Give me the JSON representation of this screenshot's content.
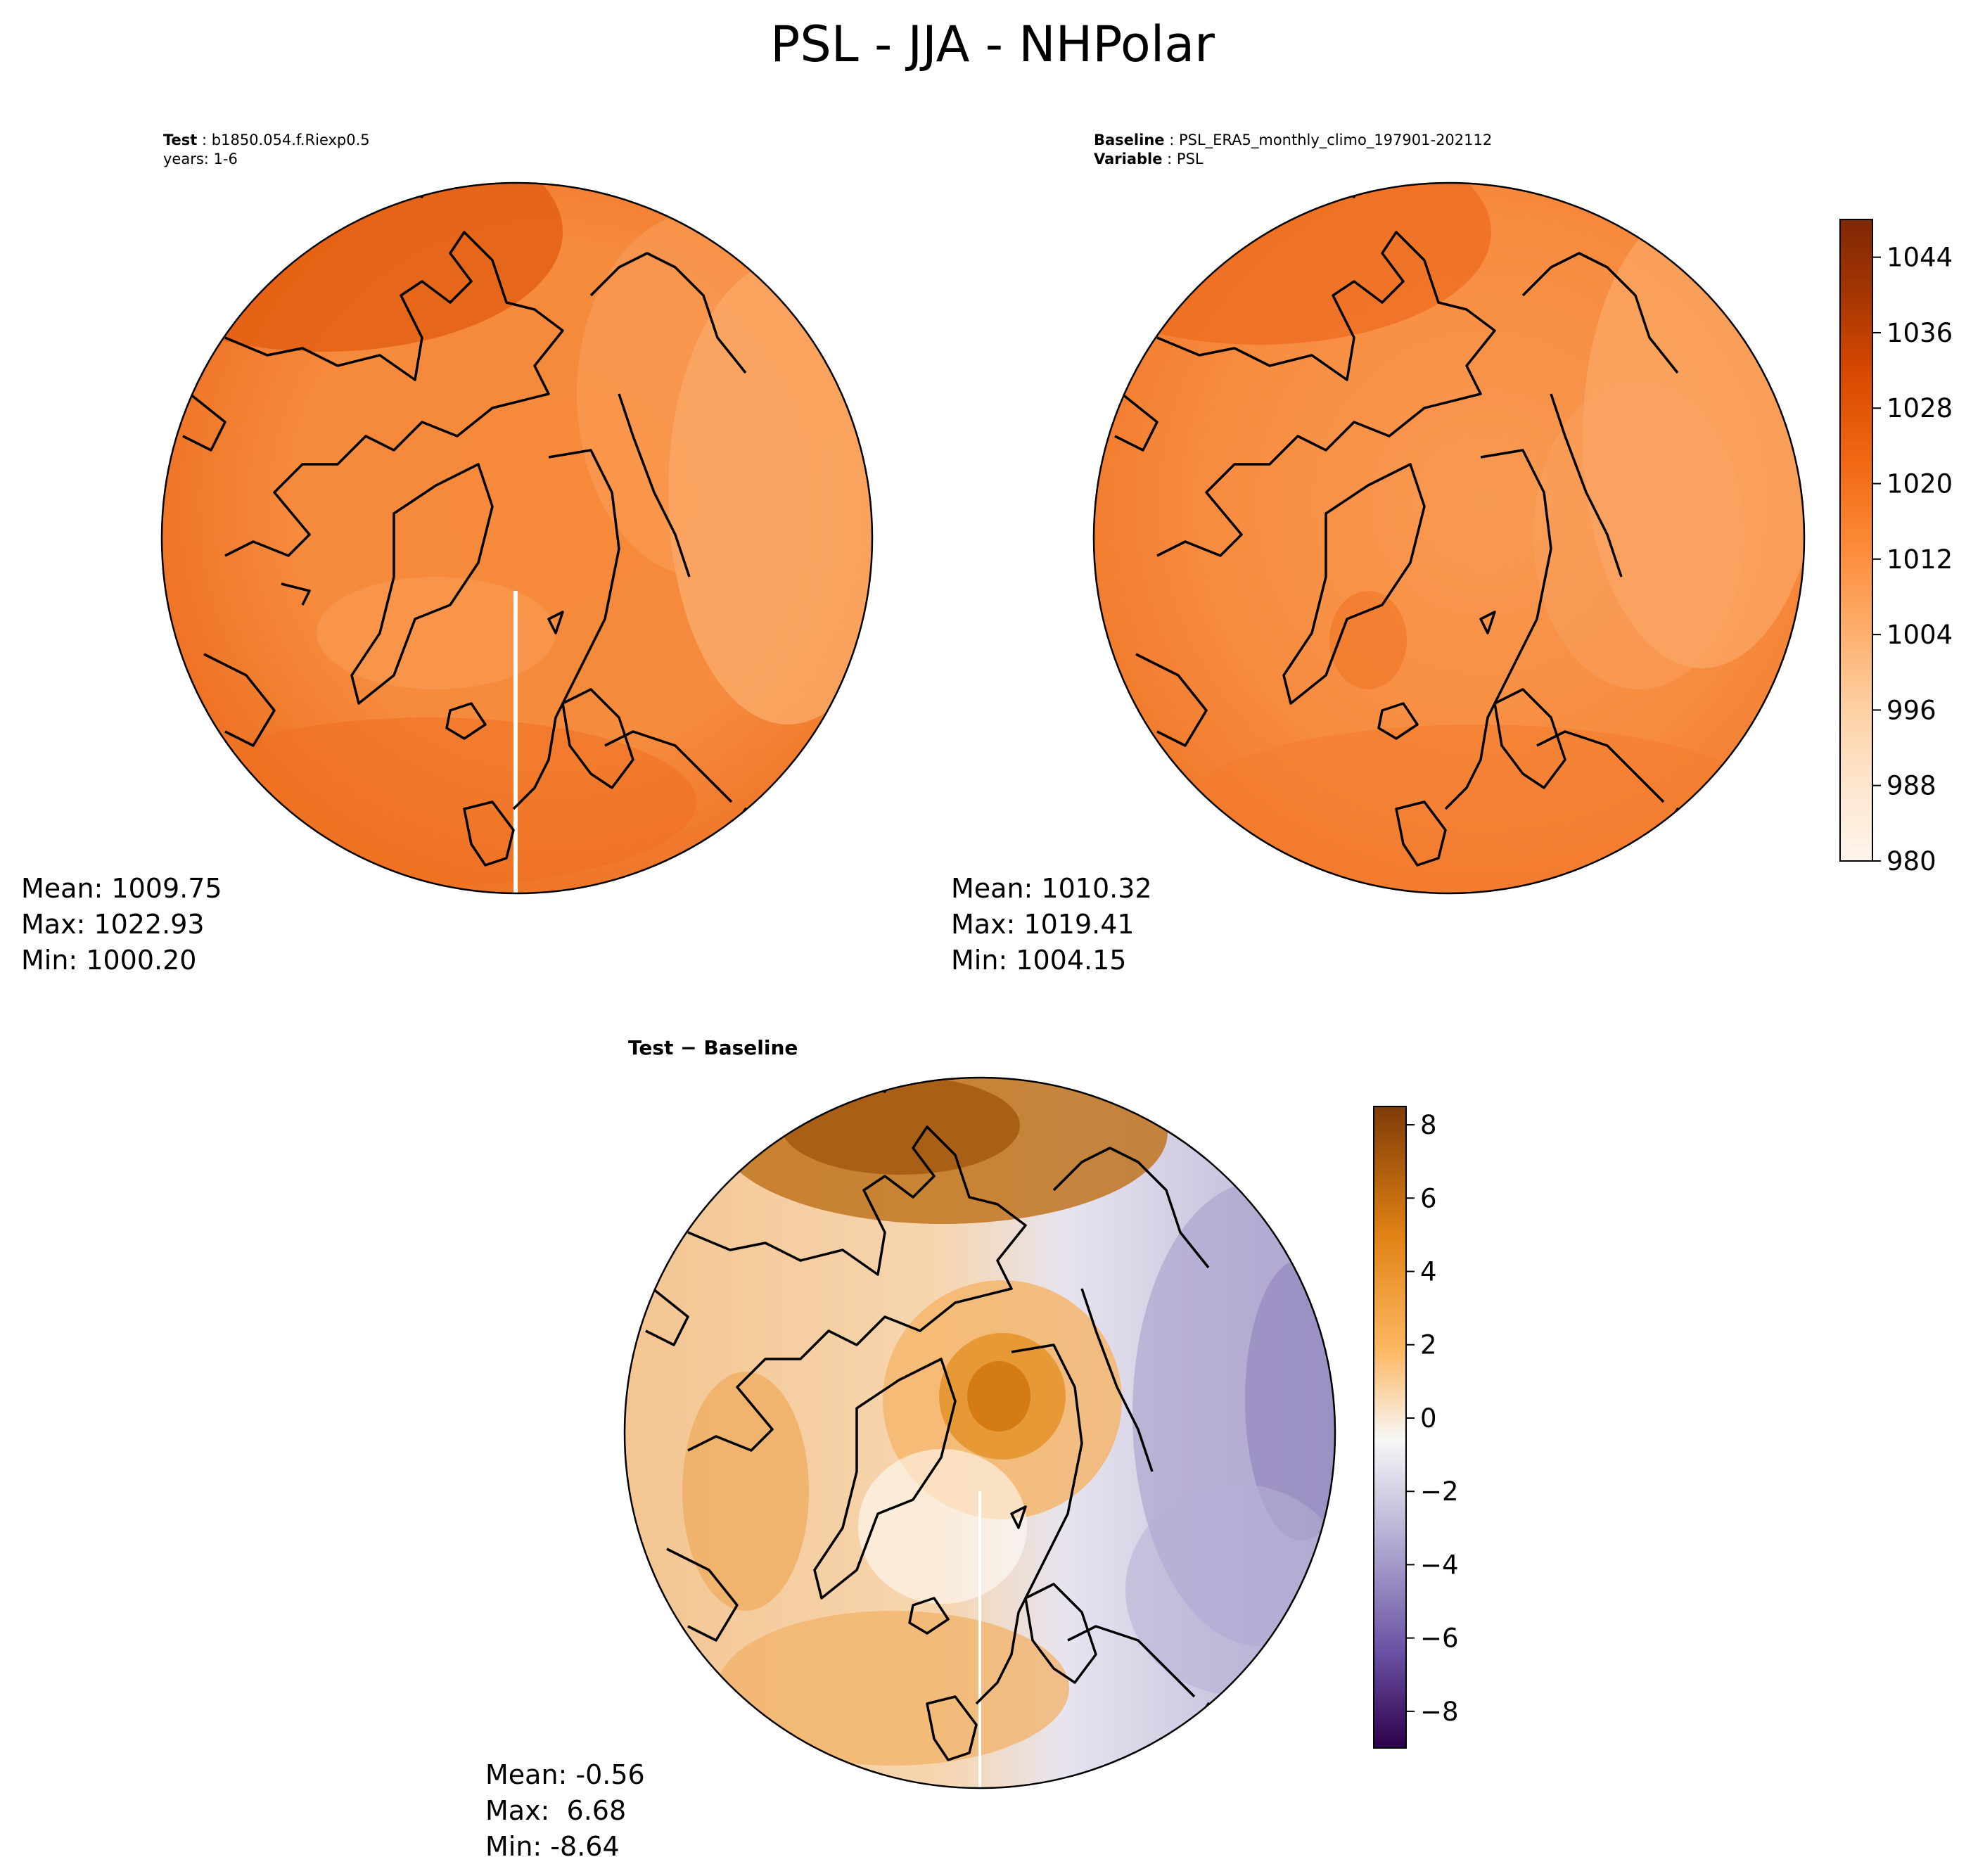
{
  "figure": {
    "title": "PSL - JJA - NHPolar"
  },
  "panels": {
    "test": {
      "label_bold": "Test",
      "label_value": "b1850.054.f.Riexp0.5",
      "line2": "years: 1-6",
      "stats": {
        "mean": "Mean: 1009.75",
        "max": "Max: 1022.93",
        "min": "Min: 1000.20"
      }
    },
    "baseline": {
      "label_bold": "Baseline",
      "label_value": "PSL_ERA5_monthly_climo_197901-202112",
      "line2_bold": "Variable",
      "line2_value": "PSL",
      "stats": {
        "mean": "Mean: 1010.32",
        "max": "Max: 1019.41",
        "min": "Min: 1004.15"
      }
    },
    "diff": {
      "label": "Test − Baseline",
      "stats": {
        "mean": "Mean: -0.56",
        "max": "Max:  6.68",
        "min": "Min: -8.64"
      }
    }
  },
  "colors": {
    "orange_ramp": [
      "#fff5eb",
      "#fee6ce",
      "#fdd0a2",
      "#fdae6b",
      "#fd8d3c",
      "#f16913",
      "#d94801",
      "#a63603",
      "#7f2704"
    ],
    "diff_purple": "#2d004b",
    "diff_mid": "#f7f7f7",
    "diff_orange": "#7f3b08",
    "coast": "#000000"
  },
  "chart_data": [
    {
      "type": "heatmap",
      "projection": "north-polar-stereographic",
      "colorbar": {
        "range": [
          980,
          1048
        ],
        "ticks": [
          "980",
          "988",
          "996",
          "1004",
          "1012",
          "1020",
          "1028",
          "1036",
          "1044"
        ]
      },
      "stats": {
        "mean": 1009.75,
        "max": 1022.93,
        "min": 1000.2
      }
    },
    {
      "type": "heatmap",
      "projection": "north-polar-stereographic",
      "colorbar": {
        "range": [
          980,
          1048
        ],
        "ticks": [
          "980",
          "988",
          "996",
          "1004",
          "1012",
          "1020",
          "1028",
          "1036",
          "1044"
        ]
      },
      "stats": {
        "mean": 1010.32,
        "max": 1019.41,
        "min": 1004.15
      }
    },
    {
      "type": "heatmap",
      "projection": "north-polar-stereographic",
      "colorbar": {
        "range": [
          -9,
          8.5
        ],
        "ticks": [
          "8",
          "6",
          "4",
          "2",
          "0",
          "−2",
          "−4",
          "−6",
          "−8"
        ]
      },
      "stats": {
        "mean": -0.56,
        "max": 6.68,
        "min": -8.64
      }
    }
  ]
}
